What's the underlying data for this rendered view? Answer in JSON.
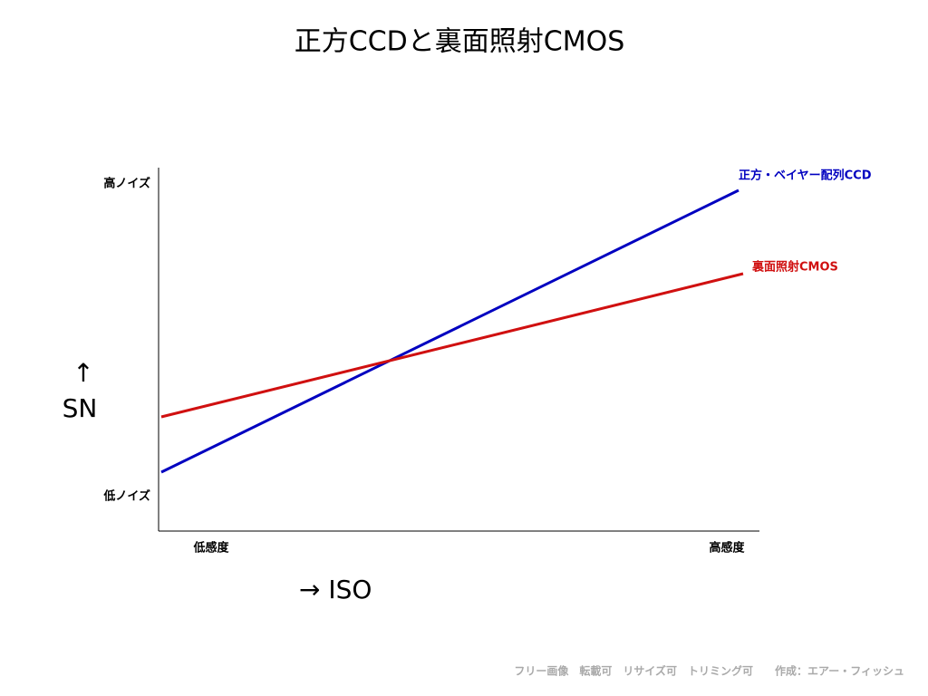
{
  "title": "正方CCDと裏面照射CMOS",
  "y_axis": {
    "arrow": "↑",
    "label": "SN",
    "top": "高ノイズ",
    "bottom": "低ノイズ"
  },
  "x_axis": {
    "label": "→ ISO",
    "left": "低感度",
    "right": "高感度"
  },
  "lines": [
    {
      "label": "正方・ベイヤー配列CCD"
    },
    {
      "label": "裏面照射CMOS"
    }
  ],
  "footer": "フリー画像　転載可　リサイズ可　トリミング可　　作成：エアー・フィッシュ"
}
